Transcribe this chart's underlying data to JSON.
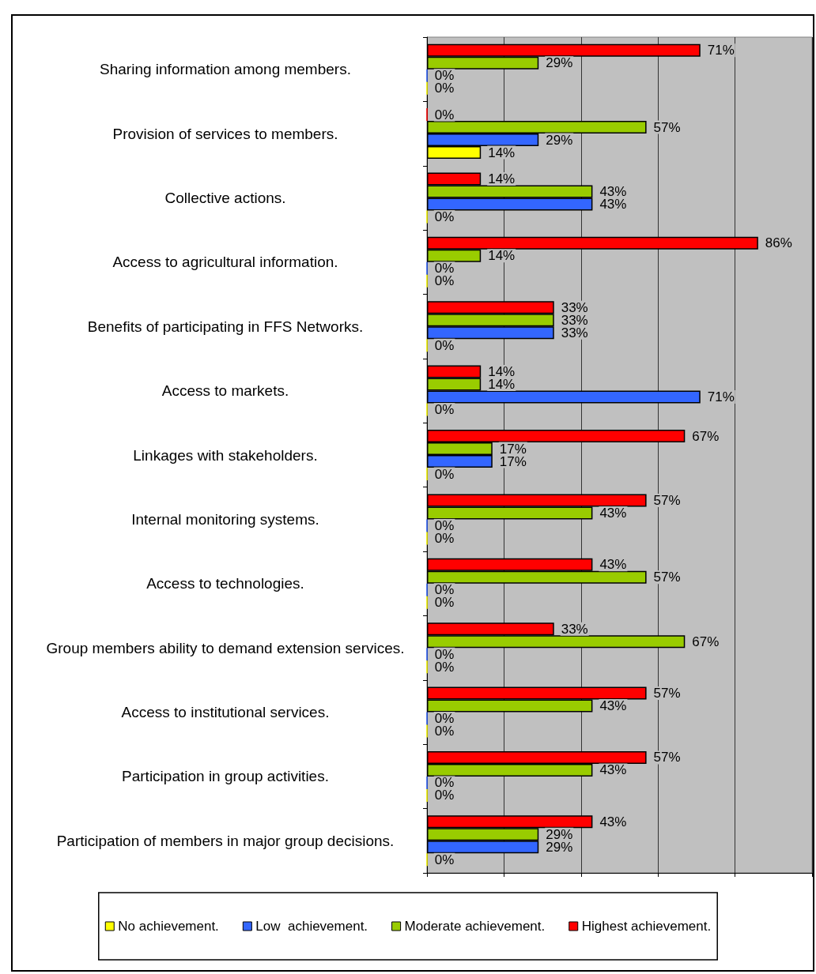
{
  "chart_data": {
    "type": "bar",
    "orientation": "horizontal",
    "categories": [
      "Sharing information among members.",
      "Provision of services to members.",
      "Collective actions.",
      "Access to agricultural information.",
      "Benefits of participating in FFS Networks.",
      "Access to markets.",
      "Linkages with stakeholders.",
      "Internal monitoring systems.",
      "Access to technologies.",
      "Group members ability to demand extension services.",
      "Access to institutional services.",
      "Participation in group activities.",
      "Participation of members in major group decisions."
    ],
    "series": [
      {
        "name": "No achievement.",
        "color": "#ffff00",
        "values": [
          0,
          14,
          0,
          0,
          0,
          0,
          0,
          0,
          0,
          0,
          0,
          0,
          0
        ],
        "value_labels": [
          "0%",
          "14%",
          "0%",
          "0%",
          "0%",
          "0%",
          "0%",
          "0%",
          "0%",
          "0%",
          "0%",
          "0%",
          "0%"
        ]
      },
      {
        "name": "Low  achievement.",
        "color": "#3366ff",
        "values": [
          0,
          29,
          43,
          0,
          33,
          71,
          17,
          0,
          0,
          0,
          0,
          0,
          29
        ],
        "value_labels": [
          "0%",
          "29%",
          "43%",
          "0%",
          "33%",
          "71%",
          "17%",
          "0%",
          "0%",
          "0%",
          "0%",
          "0%",
          "29%"
        ]
      },
      {
        "name": "Moderate achievement.",
        "color": "#99cc00",
        "values": [
          29,
          57,
          43,
          14,
          33,
          14,
          17,
          43,
          57,
          67,
          43,
          43,
          29
        ],
        "value_labels": [
          "29%",
          "57%",
          "43%",
          "14%",
          "33%",
          "14%",
          "17%",
          "43%",
          "57%",
          "67%",
          "43%",
          "43%",
          "29%"
        ]
      },
      {
        "name": "Highest achievement.",
        "color": "#ff0000",
        "values": [
          71,
          0,
          14,
          86,
          33,
          14,
          67,
          57,
          43,
          33,
          57,
          57,
          43
        ],
        "value_labels": [
          "71%",
          "0%",
          "14%",
          "86%",
          "33%",
          "14%",
          "67%",
          "57%",
          "43%",
          "33%",
          "57%",
          "57%",
          "43%"
        ]
      }
    ],
    "xlim": [
      0,
      100
    ],
    "xticks": [
      {
        "value": 0,
        "label": null
      },
      {
        "value": 20,
        "label": null
      },
      {
        "value": 40,
        "label": null
      },
      {
        "value": 60,
        "label": null
      },
      {
        "value": 80,
        "label": null
      },
      {
        "value": 100,
        "label": null
      }
    ],
    "tick_labels": "y",
    "grid": "x",
    "legend": "bottom"
  }
}
